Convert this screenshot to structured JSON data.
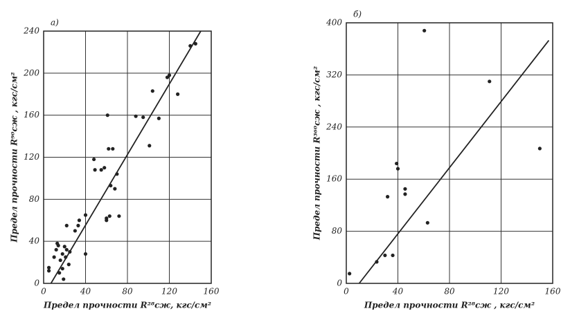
{
  "chart_data": [
    {
      "type": "scatter",
      "title": "а)",
      "x_label": "Предел прочности R²⁸сж, кгс/см²",
      "y_label": "Предел прочности R⁹⁰сж , кгс/см²",
      "xlim": [
        0,
        160
      ],
      "ylim": [
        0,
        240
      ],
      "xticks": [
        0,
        40,
        80,
        120,
        160
      ],
      "yticks": [
        0,
        40,
        80,
        120,
        160,
        200,
        240
      ],
      "grid": true,
      "color": "#222",
      "x": [
        5,
        5,
        10,
        12,
        13,
        14,
        15,
        16,
        18,
        18,
        19,
        20,
        21,
        22,
        22,
        24,
        25,
        30,
        33,
        34,
        40,
        40,
        48,
        49,
        55,
        58,
        60,
        60,
        61,
        62,
        63,
        64,
        66,
        68,
        70,
        72,
        88,
        95,
        101,
        104,
        110,
        118,
        120,
        128,
        140,
        145
      ],
      "values": [
        15,
        12,
        25,
        32,
        38,
        36,
        10,
        22,
        28,
        14,
        4,
        35,
        25,
        55,
        32,
        18,
        30,
        50,
        55,
        60,
        28,
        65,
        118,
        108,
        108,
        110,
        62,
        60,
        160,
        128,
        64,
        93,
        128,
        90,
        104,
        64,
        159,
        158,
        131,
        183,
        157,
        196,
        198,
        180,
        226,
        228
      ],
      "fit_line": {
        "x": [
          7,
          150
        ],
        "y": [
          0,
          240
        ]
      }
    },
    {
      "type": "scatter",
      "title": "б)",
      "x_label": "Предел прочности R²⁸сж , кгс/см²",
      "y_label": "Предел прочности R³⁶⁰сж , кгс/см²",
      "xlim": [
        0,
        160
      ],
      "ylim": [
        0,
        400
      ],
      "xticks": [
        0,
        40,
        80,
        120,
        160
      ],
      "yticks": [
        0,
        80,
        160,
        240,
        320,
        400
      ],
      "grid": true,
      "color": "#222",
      "x": [
        2.5,
        23.6,
        30,
        36,
        32,
        39,
        40,
        45.6,
        45.6,
        60.5,
        63,
        111,
        150
      ],
      "values": [
        15,
        33,
        43,
        43,
        133,
        184,
        176,
        145,
        137,
        388,
        93,
        310,
        207
      ],
      "fit_line": {
        "x": [
          10,
          157
        ],
        "y": [
          0,
          373
        ]
      }
    }
  ]
}
